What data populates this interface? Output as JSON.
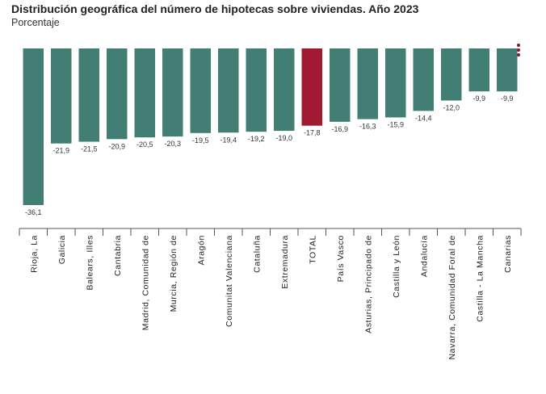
{
  "title": "Distribución geográfica del número de hipotecas sobre viviendas. Año 2023",
  "subtitle": "Porcentaje",
  "menu_icon": "more-vertical-icon",
  "colors": {
    "bar": "#437e74",
    "highlight": "#a11a33",
    "axis": "#555555"
  },
  "chart_data": {
    "type": "bar",
    "title": "Distribución geográfica del número de hipotecas sobre viviendas. Año 2023",
    "subtitle": "Porcentaje",
    "categories": [
      "Rioja, La",
      "Galicia",
      "Balears, Illes",
      "Cantabria",
      "Madrid, Comunidad de",
      "Murcia, Región de",
      "Aragón",
      "Comunitat Valenciana",
      "Cataluña",
      "Extremadura",
      "TOTAL",
      "País Vasco",
      "Asturias, Principado de",
      "Castilla y León",
      "Andalucía",
      "Navarra, Comunidad Foral de",
      "Castilla - La Mancha",
      "Canarias"
    ],
    "values": [
      -36.1,
      -21.9,
      -21.5,
      -20.9,
      -20.5,
      -20.3,
      -19.5,
      -19.4,
      -19.2,
      -19.0,
      -17.8,
      -16.9,
      -16.3,
      -15.9,
      -14.4,
      -12.0,
      -9.9,
      -9.9
    ],
    "value_labels": [
      "-36,1",
      "-21,9",
      "-21,5",
      "-20,9",
      "-20,5",
      "-20,3",
      "-19,5",
      "-19,4",
      "-19,2",
      "-19,0",
      "-17,8",
      "-16,9",
      "-16,3",
      "-15,9",
      "-14,4",
      "-12,0",
      "-9,9",
      "-9,9"
    ],
    "highlight": "TOTAL",
    "ylim": [
      -36.1,
      0
    ],
    "grid": false,
    "legend": "none"
  }
}
